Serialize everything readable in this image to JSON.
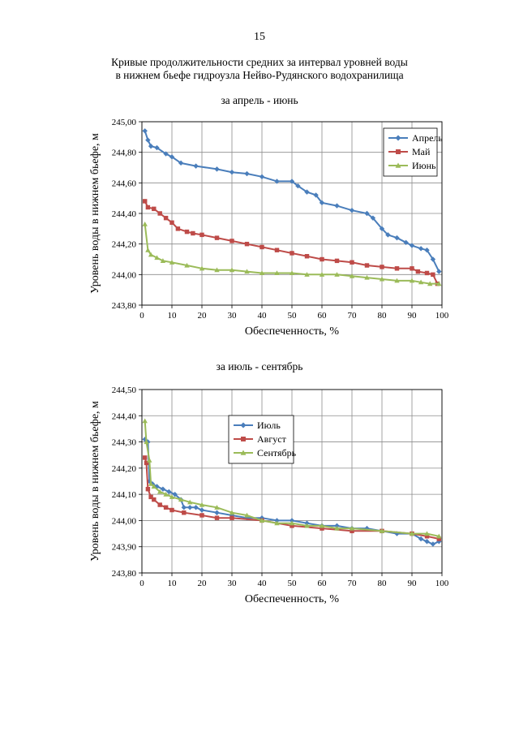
{
  "page_number": "15",
  "title_line1": "Кривые продолжительности средних за интервал уровней воды",
  "title_line2": "в нижнем бьефе гидроузла Нейво-Рудянского водохранилища",
  "chart_data": [
    {
      "type": "line",
      "title": "за апрель - июнь",
      "xlabel": "Обеспеченность, %",
      "ylabel": "Уровень воды в нижнем бьефе, м",
      "xlim": [
        0,
        100
      ],
      "ylim": [
        243.8,
        245.0
      ],
      "x_ticks": [
        "0",
        "10",
        "20",
        "30",
        "40",
        "50",
        "60",
        "70",
        "80",
        "90",
        "100"
      ],
      "y_ticks": [
        "243,80",
        "244,00",
        "244,20",
        "244,40",
        "244,60",
        "244,80",
        "245,00"
      ],
      "legend_position": "top-right",
      "series": [
        {
          "name": "Апрель",
          "color": "#4a7ebb",
          "marker": "diamond",
          "x": [
            1,
            2,
            3,
            5,
            8,
            10,
            13,
            18,
            25,
            30,
            35,
            40,
            45,
            50,
            52,
            55,
            58,
            60,
            65,
            70,
            75,
            77,
            80,
            82,
            85,
            88,
            90,
            93,
            95,
            97,
            99
          ],
          "y": [
            244.94,
            244.88,
            244.84,
            244.83,
            244.79,
            244.77,
            244.73,
            244.71,
            244.69,
            244.67,
            244.66,
            244.64,
            244.61,
            244.61,
            244.58,
            244.54,
            244.52,
            244.47,
            244.45,
            244.42,
            244.4,
            244.37,
            244.3,
            244.26,
            244.24,
            244.21,
            244.19,
            244.17,
            244.16,
            244.1,
            244.02
          ]
        },
        {
          "name": "Май",
          "color": "#be4b48",
          "marker": "square",
          "x": [
            1,
            2,
            4,
            6,
            8,
            10,
            12,
            15,
            17,
            20,
            25,
            30,
            35,
            40,
            45,
            50,
            55,
            60,
            65,
            70,
            75,
            80,
            85,
            90,
            92,
            95,
            97,
            98.5
          ],
          "y": [
            244.48,
            244.44,
            244.43,
            244.4,
            244.37,
            244.34,
            244.3,
            244.28,
            244.27,
            244.26,
            244.24,
            244.22,
            244.2,
            244.18,
            244.16,
            244.14,
            244.12,
            244.1,
            244.09,
            244.08,
            244.06,
            244.05,
            244.04,
            244.04,
            244.02,
            244.01,
            244.0,
            243.94
          ]
        },
        {
          "name": "Июнь",
          "color": "#9bbb59",
          "marker": "triangle",
          "x": [
            1,
            2,
            3,
            5,
            7,
            10,
            15,
            20,
            25,
            30,
            35,
            40,
            45,
            50,
            55,
            60,
            65,
            70,
            75,
            80,
            85,
            90,
            93,
            96,
            99
          ],
          "y": [
            244.33,
            244.16,
            244.13,
            244.11,
            244.09,
            244.08,
            244.06,
            244.04,
            244.03,
            244.03,
            244.02,
            244.01,
            244.01,
            244.01,
            244.0,
            244.0,
            244.0,
            243.99,
            243.98,
            243.97,
            243.96,
            243.96,
            243.95,
            243.94,
            243.94
          ]
        }
      ]
    },
    {
      "type": "line",
      "title": "за июль - сентябрь",
      "xlabel": "Обеспеченность, %",
      "ylabel": "Уровень воды в нижнем бьефе, м",
      "xlim": [
        0,
        100
      ],
      "ylim": [
        243.8,
        244.5
      ],
      "x_ticks": [
        "0",
        "10",
        "20",
        "30",
        "40",
        "50",
        "60",
        "70",
        "80",
        "90",
        "100"
      ],
      "y_ticks": [
        "243,80",
        "243,90",
        "244,00",
        "244,10",
        "244,20",
        "244,30",
        "244,40",
        "244,50"
      ],
      "legend_position": "top-center",
      "series": [
        {
          "name": "Июль",
          "color": "#4a7ebb",
          "marker": "diamond",
          "x": [
            1,
            2,
            2.5,
            3.5,
            5,
            7,
            9,
            11,
            13,
            14,
            16,
            18,
            20,
            25,
            30,
            35,
            40,
            45,
            50,
            55,
            60,
            65,
            70,
            75,
            80,
            85,
            90,
            93,
            95,
            97,
            99
          ],
          "y": [
            244.31,
            244.3,
            244.15,
            244.14,
            244.13,
            244.12,
            244.11,
            244.1,
            244.08,
            244.05,
            244.05,
            244.05,
            244.04,
            244.03,
            244.02,
            244.01,
            244.01,
            244.0,
            244.0,
            243.99,
            243.98,
            243.98,
            243.97,
            243.97,
            243.96,
            243.95,
            243.95,
            243.93,
            243.92,
            243.91,
            243.92
          ]
        },
        {
          "name": "Август",
          "color": "#be4b48",
          "marker": "square",
          "x": [
            1,
            1.5,
            2,
            3,
            4,
            6,
            8,
            10,
            14,
            20,
            25,
            30,
            40,
            50,
            60,
            70,
            80,
            90,
            95,
            99
          ],
          "y": [
            244.24,
            244.22,
            244.12,
            244.09,
            244.08,
            244.06,
            244.05,
            244.04,
            244.03,
            244.02,
            244.01,
            244.01,
            244.0,
            243.98,
            243.97,
            243.96,
            243.96,
            243.95,
            243.94,
            243.93
          ]
        },
        {
          "name": "Сентябрь",
          "color": "#9bbb59",
          "marker": "triangle",
          "x": [
            1,
            1.5,
            2.5,
            3,
            4,
            6,
            8,
            10,
            13,
            16,
            20,
            25,
            30,
            35,
            40,
            45,
            50,
            55,
            60,
            65,
            70,
            80,
            90,
            95,
            99
          ],
          "y": [
            244.38,
            244.3,
            244.23,
            244.14,
            244.13,
            244.11,
            244.1,
            244.09,
            244.08,
            244.07,
            244.06,
            244.05,
            244.03,
            244.02,
            244.0,
            243.99,
            243.99,
            243.98,
            243.98,
            243.97,
            243.97,
            243.96,
            243.95,
            243.95,
            243.94
          ]
        }
      ]
    }
  ]
}
